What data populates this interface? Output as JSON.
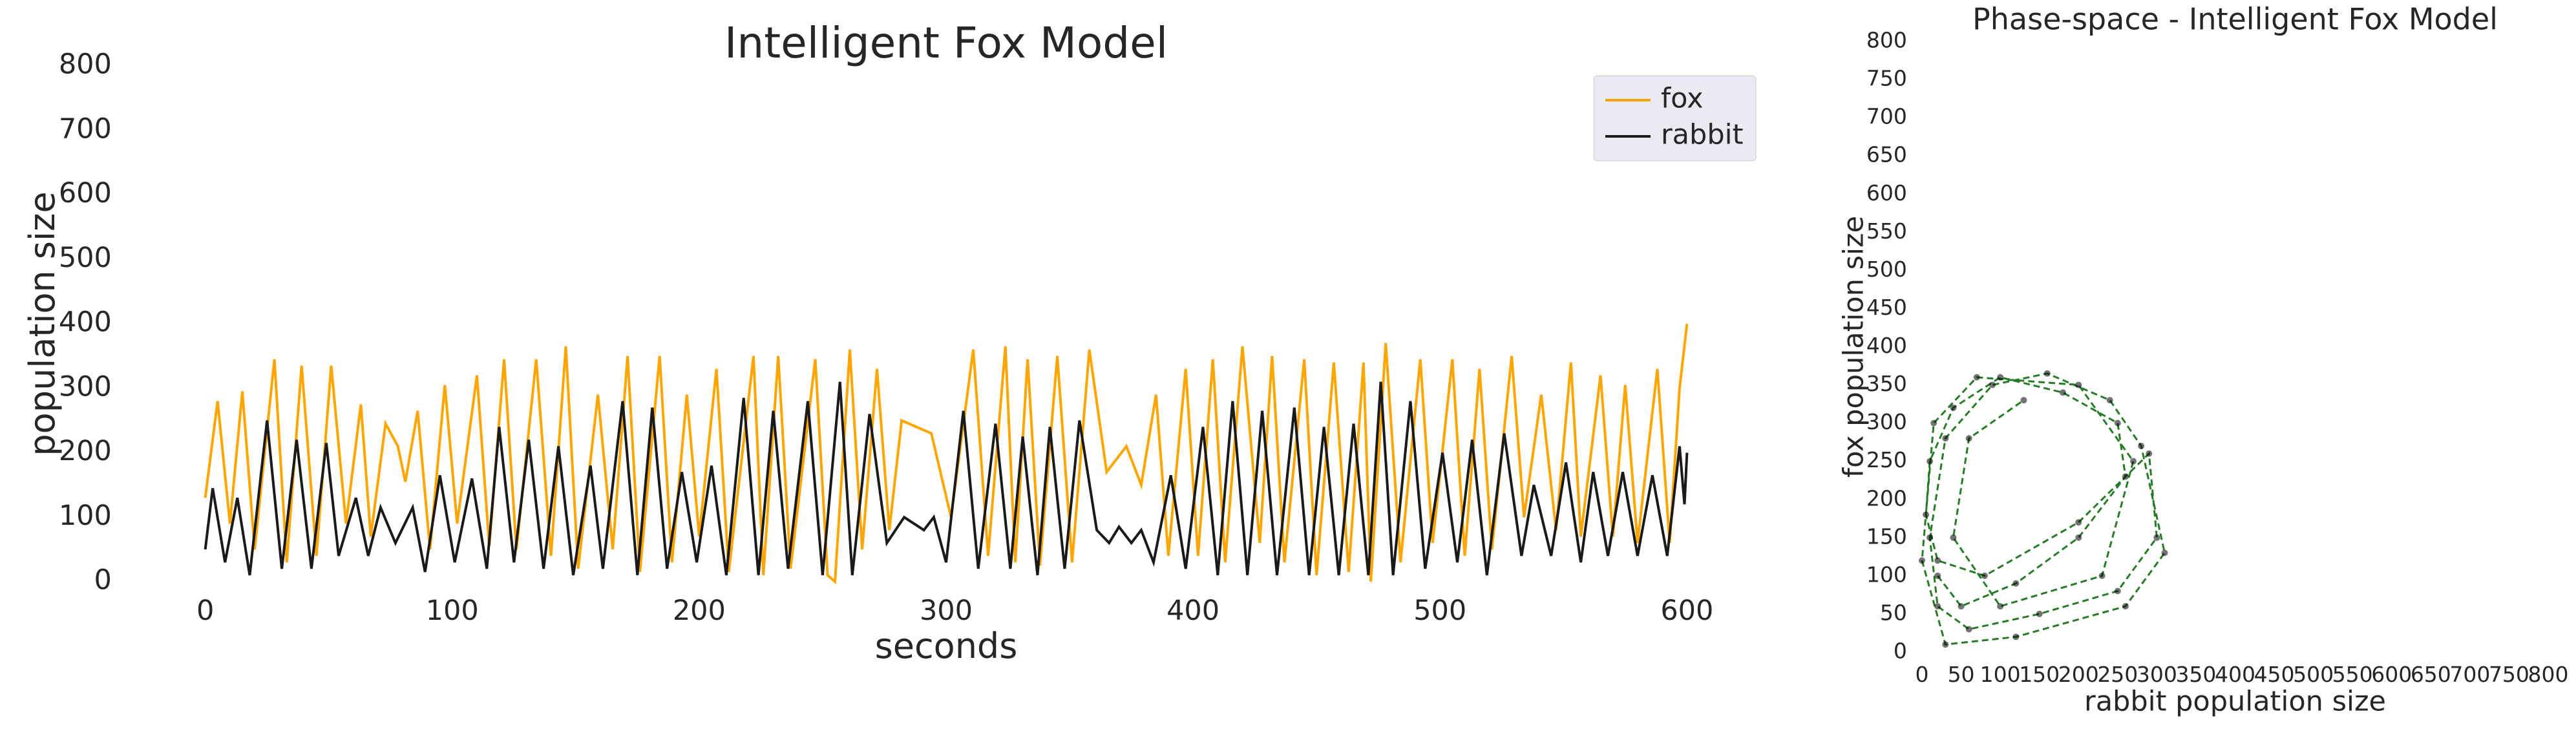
{
  "chart_data": [
    {
      "type": "line",
      "title": "Intelligent Fox Model",
      "xlabel": "seconds",
      "ylabel": "population size",
      "xlim": [
        -30,
        630
      ],
      "ylim": [
        0,
        800
      ],
      "xticks": [
        0,
        100,
        200,
        300,
        400,
        500,
        600
      ],
      "yticks": [
        0,
        100,
        200,
        300,
        400,
        500,
        600,
        700,
        800
      ],
      "legend": "upper right",
      "series": [
        {
          "name": "fox",
          "color": "#ffa500",
          "x": [
            0,
            5,
            10,
            15,
            20,
            28,
            33,
            39,
            45,
            51,
            57,
            63,
            67,
            73,
            78,
            81,
            86,
            91,
            97,
            102,
            110,
            115,
            121,
            126,
            134,
            140,
            146,
            151,
            159,
            165,
            171,
            176,
            184,
            189,
            195,
            200,
            207,
            212,
            222,
            226,
            232,
            237,
            247,
            252,
            255,
            261,
            266,
            272,
            277,
            282,
            294,
            302,
            311,
            317,
            324,
            328,
            333,
            338,
            345,
            351,
            358,
            365,
            373,
            379,
            385,
            390,
            397,
            402,
            408,
            413,
            420,
            427,
            432,
            437,
            445,
            450,
            457,
            463,
            469,
            472,
            478,
            484,
            492,
            497,
            505,
            510,
            516,
            521,
            529,
            534,
            541,
            547,
            553,
            557,
            565,
            570,
            575,
            580,
            588,
            593,
            597,
            600
          ],
          "values": [
            130,
            280,
            90,
            295,
            50,
            345,
            30,
            335,
            40,
            335,
            90,
            275,
            70,
            245,
            210,
            155,
            265,
            50,
            305,
            90,
            320,
            55,
            345,
            50,
            345,
            40,
            365,
            20,
            290,
            50,
            350,
            15,
            350,
            30,
            290,
            70,
            330,
            15,
            350,
            10,
            350,
            20,
            345,
            10,
            0,
            360,
            50,
            330,
            80,
            250,
            230,
            100,
            360,
            40,
            365,
            30,
            345,
            25,
            350,
            30,
            360,
            170,
            210,
            150,
            290,
            40,
            330,
            40,
            345,
            30,
            365,
            60,
            350,
            30,
            345,
            10,
            340,
            15,
            340,
            0,
            370,
            30,
            345,
            60,
            345,
            40,
            330,
            50,
            350,
            100,
            290,
            80,
            340,
            70,
            320,
            70,
            305,
            60,
            330,
            60,
            300,
            400
          ]
        },
        {
          "name": "rabbit",
          "color": "#1a1a1a",
          "x": [
            0,
            3,
            8,
            13,
            18,
            25,
            31,
            37,
            43,
            49,
            54,
            61,
            66,
            71,
            77,
            84,
            89,
            95,
            101,
            108,
            114,
            119,
            125,
            131,
            137,
            143,
            149,
            156,
            161,
            169,
            175,
            181,
            187,
            193,
            199,
            205,
            211,
            218,
            224,
            230,
            236,
            244,
            250,
            257,
            262,
            269,
            276,
            283,
            291,
            295,
            300,
            307,
            313,
            320,
            326,
            331,
            337,
            342,
            348,
            354,
            361,
            366,
            370,
            375,
            379,
            384,
            391,
            397,
            404,
            410,
            416,
            422,
            428,
            434,
            441,
            447,
            453,
            459,
            465,
            471,
            476,
            481,
            488,
            494,
            501,
            507,
            513,
            519,
            526,
            533,
            538,
            545,
            551,
            557,
            562,
            568,
            574,
            580,
            586,
            592,
            597,
            599,
            600
          ],
          "values": [
            50,
            145,
            30,
            130,
            10,
            250,
            20,
            220,
            20,
            215,
            40,
            130,
            40,
            115,
            60,
            115,
            15,
            165,
            30,
            160,
            20,
            240,
            30,
            220,
            20,
            210,
            10,
            180,
            20,
            280,
            10,
            270,
            20,
            170,
            30,
            180,
            10,
            285,
            10,
            265,
            20,
            280,
            10,
            310,
            10,
            260,
            60,
            100,
            80,
            100,
            30,
            265,
            20,
            245,
            20,
            225,
            10,
            240,
            20,
            250,
            80,
            60,
            85,
            60,
            80,
            30,
            165,
            20,
            240,
            10,
            280,
            10,
            265,
            10,
            270,
            10,
            240,
            10,
            245,
            10,
            310,
            10,
            280,
            20,
            200,
            30,
            220,
            10,
            230,
            40,
            150,
            40,
            185,
            30,
            170,
            40,
            170,
            40,
            165,
            40,
            210,
            120,
            200
          ]
        }
      ]
    },
    {
      "type": "phase",
      "title": "Phase-space - Intelligent Fox Model",
      "xlabel": "rabbit population size",
      "ylabel": "fox population size",
      "xlim": [
        0,
        800
      ],
      "ylim": [
        0,
        800
      ],
      "xticks": [
        0,
        50,
        100,
        150,
        200,
        250,
        300,
        350,
        400,
        450,
        500,
        550,
        600,
        650,
        700,
        750,
        800
      ],
      "yticks": [
        0,
        50,
        100,
        150,
        200,
        250,
        300,
        350,
        400,
        450,
        500,
        550,
        600,
        650,
        700,
        750,
        800
      ],
      "line_color": "#006400",
      "marker_color": "#000000",
      "x": [
        20,
        50,
        120,
        200,
        260,
        250,
        180,
        100,
        40,
        10,
        5,
        20,
        80,
        200,
        290,
        300,
        250,
        150,
        60,
        20,
        10,
        30,
        90,
        160,
        240,
        280,
        310,
        260,
        120,
        30,
        0,
        15,
        70,
        200,
        270,
        230,
        100,
        40,
        60,
        130
      ],
      "values": [
        100,
        60,
        90,
        150,
        230,
        300,
        340,
        360,
        320,
        250,
        180,
        120,
        100,
        170,
        260,
        150,
        80,
        50,
        30,
        60,
        150,
        280,
        350,
        365,
        330,
        270,
        130,
        60,
        20,
        10,
        120,
        300,
        360,
        350,
        250,
        100,
        60,
        150,
        280,
        330
      ]
    }
  ]
}
